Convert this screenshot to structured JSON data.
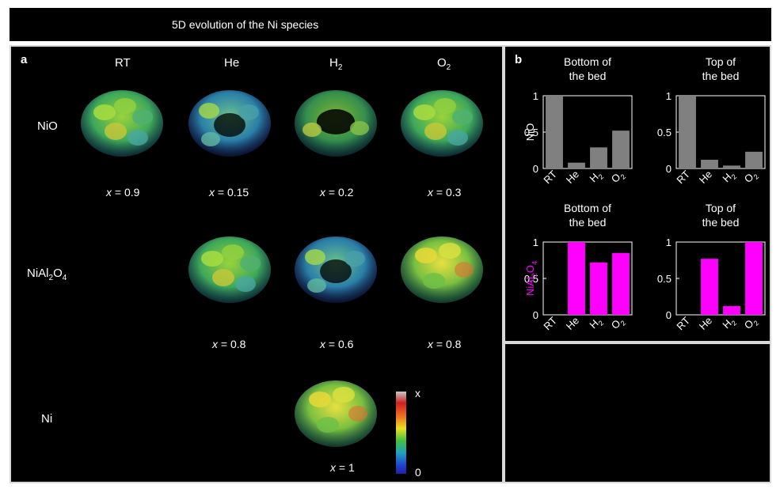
{
  "title": "5D evolution of the Ni species",
  "panel_a": {
    "letter": "a",
    "columns": [
      "RT",
      "He",
      "H",
      "O"
    ],
    "column_subs": [
      "",
      "",
      "2",
      "2"
    ],
    "rows": [
      {
        "prefix": "NiO",
        "sub1": "",
        "mid": "",
        "sub2": ""
      },
      {
        "prefix": "NiAl",
        "sub1": "2",
        "mid": "O",
        "sub2": "4"
      },
      {
        "prefix": "Ni",
        "sub1": "",
        "mid": "",
        "sub2": ""
      }
    ],
    "x_values": {
      "nio": [
        "x = 0.9",
        "x = 0.15",
        "x = 0.2",
        "x = 0.3"
      ],
      "nial2o4": [
        "x = 0.8",
        "x = 0.6",
        "x = 0.8"
      ],
      "ni": [
        "x = 1"
      ]
    },
    "x_var": "x",
    "x_nums": {
      "nio": [
        "= 0.9",
        "= 0.15",
        "= 0.2",
        "= 0.3"
      ],
      "nial2o4": [
        "= 0.8",
        "= 0.6",
        "= 0.8"
      ],
      "ni": [
        "= 1"
      ]
    },
    "colorbar": {
      "max_label": "x",
      "min_label": "0"
    }
  },
  "panel_b": {
    "letter": "b"
  },
  "colors": {
    "gray_bar": "#808080",
    "magenta_bar": "#ff00ff",
    "background": "#000000",
    "axis": "#ffffff"
  },
  "chart_data": [
    {
      "type": "bar",
      "title": "Bottom of the bed",
      "title_lines": [
        "Bottom of",
        "the bed"
      ],
      "ylabel": "NiO",
      "ylabel_color": "#ffffff",
      "categories": [
        "RT",
        "He",
        "H2",
        "O2"
      ],
      "values": [
        1.0,
        0.08,
        0.29,
        0.52
      ],
      "ylim": [
        0,
        1
      ],
      "yticks": [
        "0",
        "0.5",
        "1"
      ],
      "bar_color": "#808080"
    },
    {
      "type": "bar",
      "title": "Top of the bed",
      "title_lines": [
        "Top of",
        "the bed"
      ],
      "ylabel": "",
      "categories": [
        "RT",
        "He",
        "H2",
        "O2"
      ],
      "values": [
        1.0,
        0.12,
        0.04,
        0.23
      ],
      "ylim": [
        0,
        1
      ],
      "yticks": [
        "0",
        "0.5",
        "1"
      ],
      "bar_color": "#808080"
    },
    {
      "type": "bar",
      "title": "Bottom of the bed",
      "title_lines": [
        "Bottom of",
        "the bed"
      ],
      "ylabel": "NiAl2O4",
      "ylabel_color": "#ff00ff",
      "categories": [
        "RT",
        "He",
        "H2",
        "O2"
      ],
      "values": [
        0,
        1.0,
        0.72,
        0.85
      ],
      "ylim": [
        0,
        1
      ],
      "yticks": [
        "0",
        "0.5",
        "1"
      ],
      "bar_color": "#ff00ff"
    },
    {
      "type": "bar",
      "title": "Top of the bed",
      "title_lines": [
        "Top of",
        "the bed"
      ],
      "ylabel": "",
      "categories": [
        "RT",
        "He",
        "H2",
        "O2"
      ],
      "values": [
        0,
        0.77,
        0.12,
        1.0
      ],
      "ylim": [
        0,
        1
      ],
      "yticks": [
        "0",
        "0.5",
        "1"
      ],
      "bar_color": "#ff00ff"
    }
  ]
}
